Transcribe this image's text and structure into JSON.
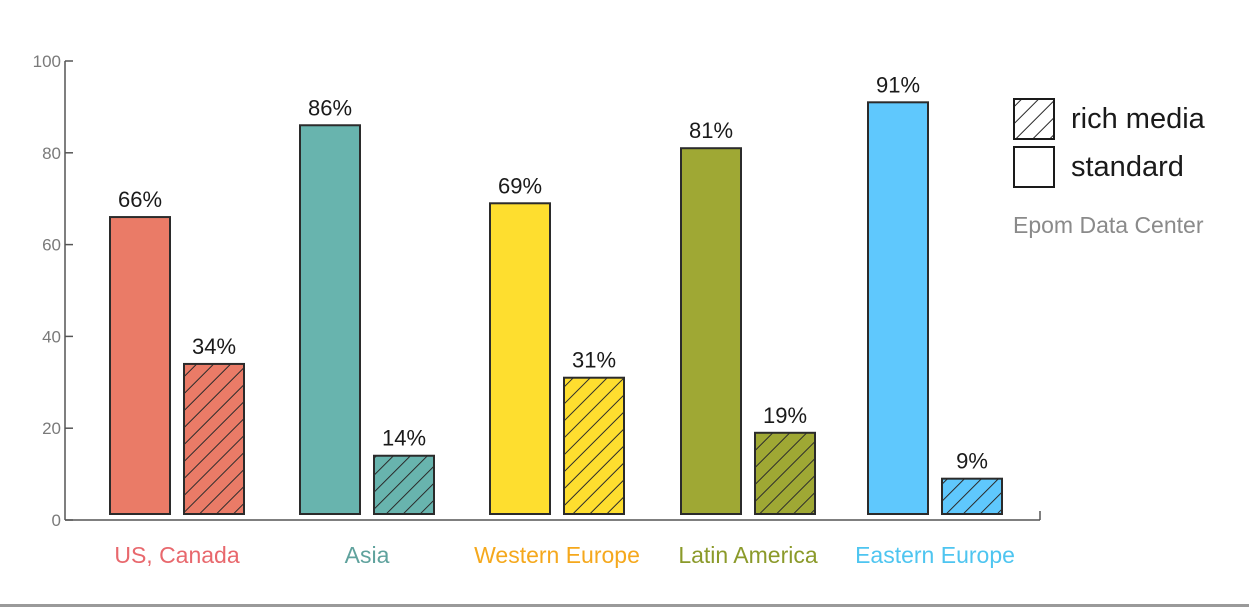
{
  "chart_data": {
    "type": "bar",
    "categories": [
      "US, Canada",
      "Asia",
      "Western Europe",
      "Latin America",
      "Eastern Europe"
    ],
    "category_colors": [
      "#ea7b67",
      "#68b4ae",
      "#fede2f",
      "#9fa834",
      "#5fc8fd"
    ],
    "category_label_colors": [
      "#e8686d",
      "#5fa29d",
      "#f5a81c",
      "#8b9a2a",
      "#4ec5f0"
    ],
    "series": [
      {
        "values": [
          66,
          86,
          69,
          81,
          91
        ],
        "labels": [
          "66%",
          "86%",
          "69%",
          "81%",
          "91%"
        ],
        "pattern": "solid"
      },
      {
        "values": [
          34,
          14,
          31,
          19,
          9
        ],
        "labels": [
          "34%",
          "14%",
          "31%",
          "19%",
          "9%"
        ],
        "pattern": "hatched"
      }
    ],
    "ylim": [
      0,
      100
    ],
    "yticks": [
      0,
      20,
      40,
      60,
      80,
      100
    ],
    "grid": false,
    "legend": {
      "position": "top-right",
      "items": [
        {
          "label": "rich media",
          "pattern": "hatched"
        },
        {
          "label": "standard",
          "pattern": "solid"
        }
      ]
    },
    "source": "Epom Data Center"
  }
}
